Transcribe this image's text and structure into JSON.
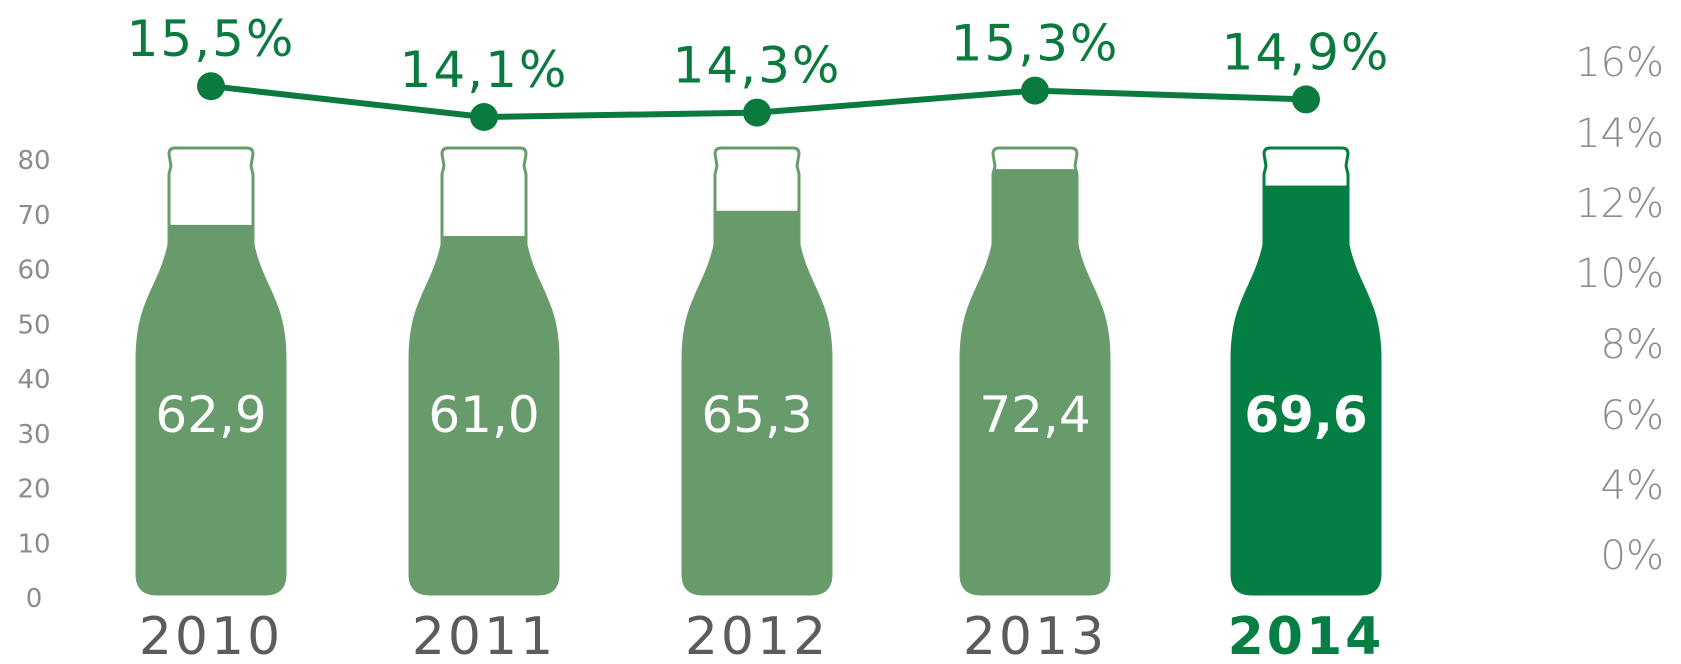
{
  "chart_data": {
    "type": "bar",
    "categories": [
      "2010",
      "2011",
      "2012",
      "2013",
      "2014"
    ],
    "series": [
      {
        "values": [
          62.9,
          61.0,
          65.3,
          72.4,
          69.6
        ],
        "value_labels": [
          "62,9",
          "61,0",
          "65,3",
          "72,4",
          "69,6"
        ],
        "axis": "left"
      },
      {
        "values": [
          15.5,
          14.1,
          14.3,
          15.3,
          14.9
        ],
        "value_labels": [
          "15,5%",
          "14,1%",
          "14,3%",
          "15,3%",
          "14,9%"
        ],
        "axis": "right",
        "type": "line"
      }
    ],
    "left_axis": {
      "ylim": [
        0,
        80
      ],
      "ticks": [
        "0",
        "10",
        "20",
        "30",
        "40",
        "50",
        "60",
        "70",
        "80"
      ]
    },
    "right_axis": {
      "ylim": [
        0,
        16
      ],
      "ticks": [
        "0%",
        "4%",
        "6%",
        "8%",
        "10%",
        "12%",
        "14%",
        "16%"
      ]
    },
    "highlighted_category": "2014",
    "grid": false,
    "legend": "none",
    "colors": {
      "bar_fill": "#689b6b",
      "bar_highlight": "#047e42",
      "line": "#0b7a3e",
      "bottle_outline": "#6a9c6d",
      "tick_text": "#8c8c8c",
      "year_text": "#5c5c5c"
    }
  }
}
